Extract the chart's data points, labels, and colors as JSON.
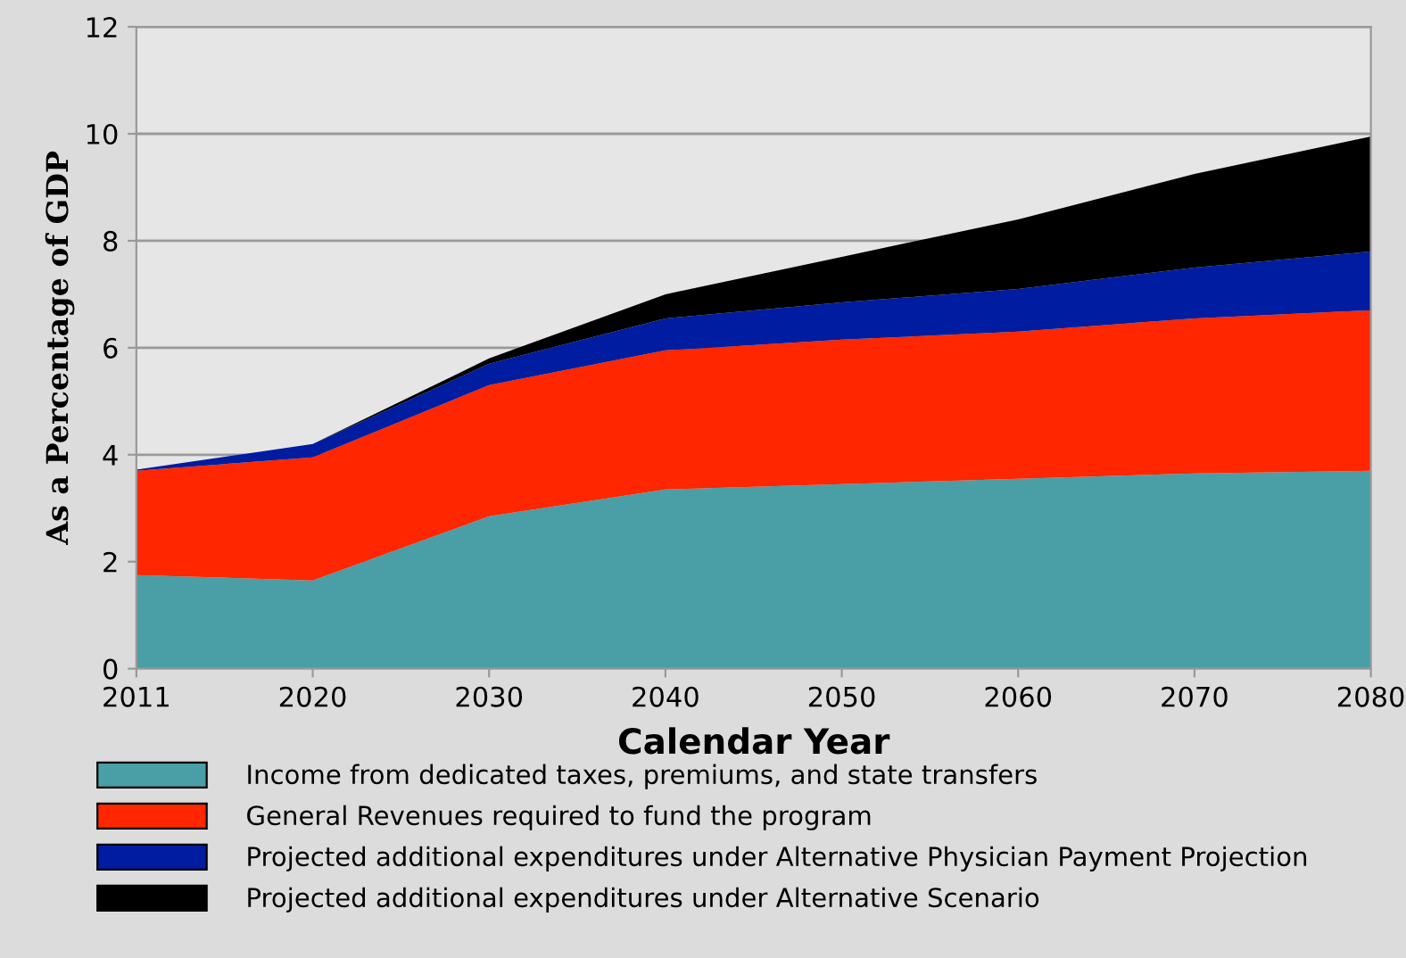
{
  "chart_data": {
    "type": "area",
    "stacked": true,
    "xlabel": "Calendar Year",
    "ylabel": "As a Percentage of GDP",
    "categories": [
      "2011",
      "2020",
      "2030",
      "2040",
      "2050",
      "2060",
      "2070",
      "2080"
    ],
    "series": [
      {
        "name": "Income from dedicated taxes, premiums, and state transfers",
        "color": "#4a9ea6",
        "values": [
          1.75,
          1.65,
          2.85,
          3.35,
          3.45,
          3.55,
          3.65,
          3.7
        ]
      },
      {
        "name": "General Revenues required to fund the program",
        "color": "#ff2600",
        "values": [
          1.95,
          2.3,
          2.45,
          2.6,
          2.7,
          2.75,
          2.9,
          3.0
        ]
      },
      {
        "name": "Projected additional expenditures under Alternative Physician Payment Projection",
        "color": "#001ca0",
        "values": [
          0.02,
          0.25,
          0.4,
          0.6,
          0.7,
          0.8,
          0.95,
          1.1
        ]
      },
      {
        "name": "Projected additional expenditures under Alternative Scenario",
        "color": "#000000",
        "values": [
          0,
          0,
          0.1,
          0.45,
          0.85,
          1.3,
          1.75,
          2.15
        ]
      }
    ],
    "ylim": [
      0,
      12
    ],
    "yticks": [
      0,
      2,
      4,
      6,
      8,
      10,
      12
    ],
    "grid": "y",
    "legend": "bottom"
  }
}
